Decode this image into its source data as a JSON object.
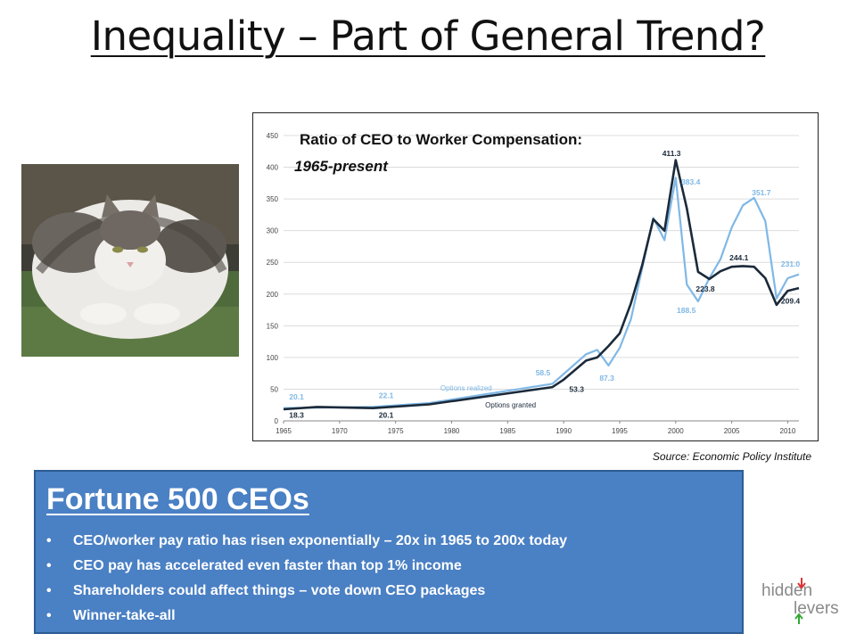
{
  "slide": {
    "title": "Inequality – Part of General Trend?",
    "source": "Source: Economic Policy Institute"
  },
  "image": {
    "subject": "fat-cat-photo"
  },
  "box": {
    "title": "Fortune 500 CEOs",
    "bullets": [
      "CEO/worker pay ratio has risen exponentially – 20x in 1965 to 200x today",
      "CEO pay has accelerated even faster than top 1% income",
      "Shareholders could affect things – vote down CEO packages",
      "Winner-take-all"
    ]
  },
  "logo": {
    "line1": "hidden",
    "line2": "levers"
  },
  "chart_data": {
    "type": "line",
    "title": "Ratio of CEO to Worker Compensation:",
    "subtitle": "1965-present",
    "xlim": [
      1965,
      2011
    ],
    "ylim": [
      0,
      450
    ],
    "xticks": [
      1965,
      1970,
      1975,
      1980,
      1985,
      1990,
      1995,
      2000,
      2005,
      2010
    ],
    "yticks": [
      0,
      50,
      100,
      150,
      200,
      250,
      300,
      350,
      400,
      450
    ],
    "grid": true,
    "colors": {
      "realized": "#7fb8e6",
      "granted": "#1b2a3a"
    },
    "series": [
      {
        "name": "Options realized",
        "key": "realized",
        "x": [
          1965,
          1973,
          1978,
          1989,
          1992,
          1993,
          1994,
          1995,
          1996,
          1997,
          1998,
          1999,
          2000,
          2001,
          2002,
          2003,
          2004,
          2005,
          2006,
          2007,
          2008,
          2009,
          2010,
          2011
        ],
        "y": [
          20.1,
          22.1,
          28,
          58.5,
          105,
          112,
          87.3,
          115,
          160,
          240,
          320,
          285,
          383.4,
          215,
          188.5,
          225,
          255,
          305,
          340,
          351.7,
          315,
          193,
          225,
          231.0
        ]
      },
      {
        "name": "Options granted",
        "key": "granted",
        "x": [
          1965,
          1968,
          1973,
          1978,
          1989,
          1990,
          1992,
          1993,
          1994,
          1995,
          1996,
          1997,
          1998,
          1999,
          2000,
          2001,
          2002,
          2003,
          2004,
          2005,
          2006,
          2007,
          2008,
          2009,
          2010,
          2011
        ],
        "y": [
          18.3,
          22,
          20.1,
          26,
          53.3,
          65,
          95,
          100,
          118,
          138,
          185,
          245,
          318,
          300,
          411.3,
          335,
          235,
          223.8,
          236,
          243,
          244.1,
          243,
          225,
          183,
          205,
          209.4
        ]
      }
    ],
    "labels": [
      {
        "text": "20.1",
        "x": 1965.5,
        "y": 34,
        "series": "realized"
      },
      {
        "text": "18.3",
        "x": 1965.5,
        "y": 5,
        "series": "granted"
      },
      {
        "text": "22.1",
        "x": 1973.5,
        "y": 36,
        "series": "realized"
      },
      {
        "text": "20.1",
        "x": 1973.5,
        "y": 5,
        "series": "granted"
      },
      {
        "text": "Options realized",
        "x": 1979,
        "y": 48,
        "series": "realized"
      },
      {
        "text": "Options granted",
        "x": 1983,
        "y": 21,
        "series": "granted"
      },
      {
        "text": "58.5",
        "x": 1987.5,
        "y": 72,
        "series": "realized"
      },
      {
        "text": "53.3",
        "x": 1990.5,
        "y": 46,
        "series": "granted"
      },
      {
        "text": "87.3",
        "x": 1993.2,
        "y": 63,
        "series": "realized"
      },
      {
        "text": "411.3",
        "x": 1998.8,
        "y": 418,
        "series": "granted"
      },
      {
        "text": "383.4",
        "x": 2000.5,
        "y": 373,
        "series": "realized"
      },
      {
        "text": "351.7",
        "x": 2006.8,
        "y": 356,
        "series": "realized"
      },
      {
        "text": "244.1",
        "x": 2004.8,
        "y": 253,
        "series": "granted"
      },
      {
        "text": "223.8",
        "x": 2001.8,
        "y": 204,
        "series": "granted"
      },
      {
        "text": "188.5",
        "x": 2000.1,
        "y": 170,
        "series": "realized"
      },
      {
        "text": "231.0",
        "x": 2009.4,
        "y": 243,
        "series": "realized"
      },
      {
        "text": "209.4",
        "x": 2009.4,
        "y": 185,
        "series": "granted"
      }
    ]
  }
}
